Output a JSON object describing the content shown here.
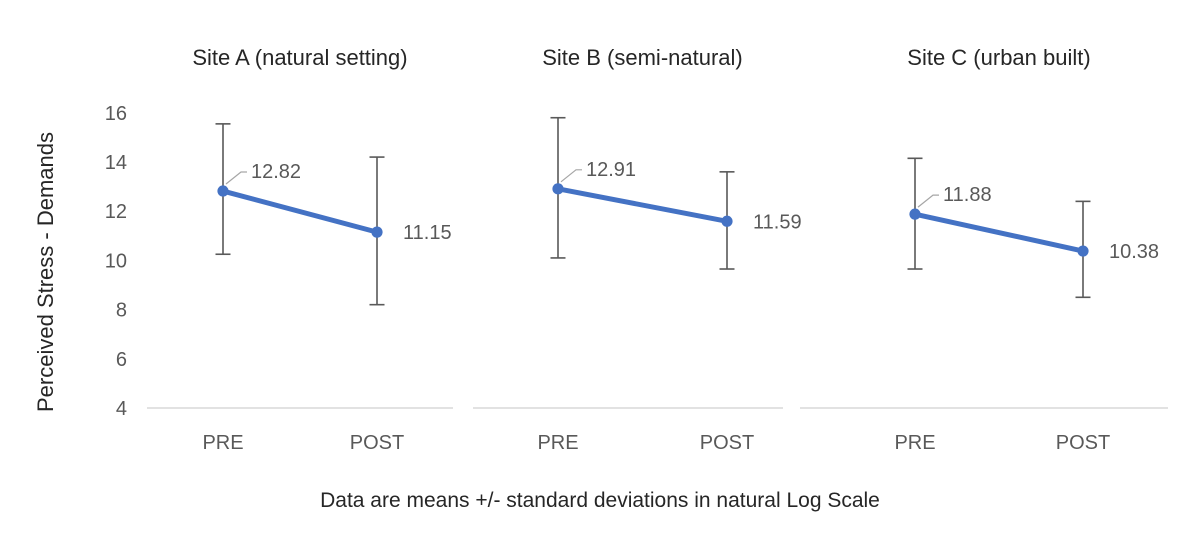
{
  "page": {
    "background": "#ffffff"
  },
  "colors": {
    "series_blue": "#4472C4",
    "error_bar": "#595959",
    "axis_line": "#D9D9D9",
    "tick_text": "#595959",
    "label_text": "#595959",
    "category_text": "#595959",
    "title_text": "#262626",
    "leader_line": "#A6A6A6"
  },
  "y_axis": {
    "title": "Perceived Stress - Demands"
  },
  "caption": "Data are means +/- standard deviations in natural Log Scale",
  "chart_data": {
    "type": "line",
    "layout": "three side-by-side panels (small multiples), shared y axis at left, error bars on points, legend none, grid off",
    "ylabel": "Perceived Stress - Demands",
    "ylim": [
      4,
      16
    ],
    "yticks": [
      4,
      6,
      8,
      10,
      12,
      14,
      16
    ],
    "categories": [
      "PRE",
      "POST"
    ],
    "caption": "Data are means +/- standard deviations in natural Log Scale",
    "panels": [
      {
        "title": "Site A (natural setting)",
        "series": [
          {
            "name": "mean",
            "values": [
              12.82,
              11.15
            ]
          }
        ],
        "data_labels": [
          "12.82",
          "11.15"
        ],
        "error_top": [
          15.55,
          14.2
        ],
        "error_bottom": [
          10.25,
          8.2
        ]
      },
      {
        "title": "Site B (semi-natural)",
        "series": [
          {
            "name": "mean",
            "values": [
              12.91,
              11.59
            ]
          }
        ],
        "data_labels": [
          "12.91",
          "11.59"
        ],
        "error_top": [
          15.8,
          13.6
        ],
        "error_bottom": [
          10.1,
          9.65
        ]
      },
      {
        "title": "Site C (urban built)",
        "series": [
          {
            "name": "mean",
            "values": [
              11.88,
              10.38
            ]
          }
        ],
        "data_labels": [
          "11.88",
          "10.38"
        ],
        "error_top": [
          14.15,
          12.4
        ],
        "error_bottom": [
          9.65,
          8.5
        ]
      }
    ]
  }
}
